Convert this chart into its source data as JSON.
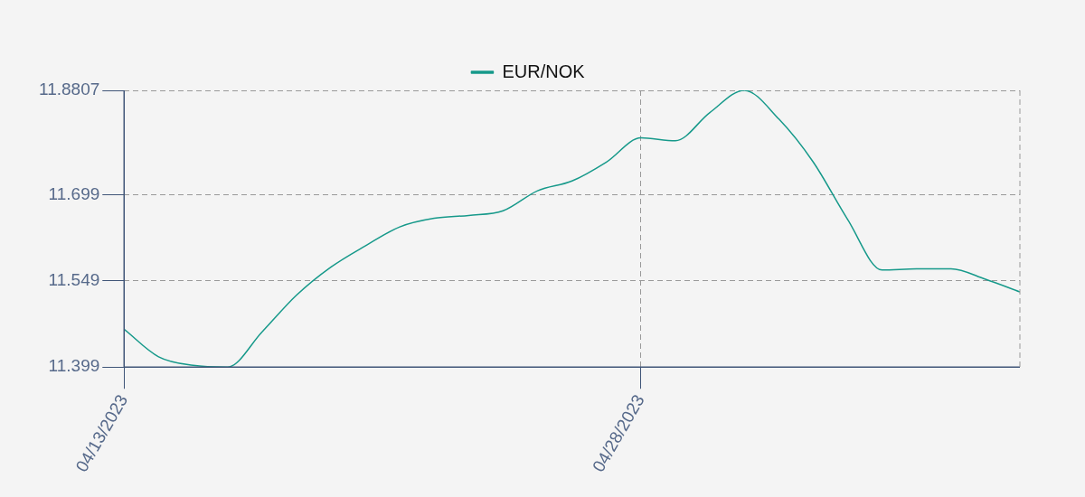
{
  "chart_data": {
    "type": "line",
    "legend": "top",
    "grid": true,
    "marker": "none",
    "line_style": "solid",
    "xlim": [
      "2023-04-13",
      "2023-05-09"
    ],
    "xticks": [
      {
        "value": "2023-04-13",
        "label": "04/13/2023"
      },
      {
        "value": "2023-04-28",
        "label": "04/28/2023"
      }
    ],
    "ylim": [
      11.399,
      11.8807
    ],
    "yticks": [
      11.399,
      11.549,
      11.699,
      11.8807
    ],
    "x": [
      "2023-04-13",
      "2023-04-14",
      "2023-04-15",
      "2023-04-16",
      "2023-04-17",
      "2023-04-18",
      "2023-04-19",
      "2023-04-20",
      "2023-04-21",
      "2023-04-22",
      "2023-04-23",
      "2023-04-24",
      "2023-04-25",
      "2023-04-26",
      "2023-04-27",
      "2023-04-28",
      "2023-04-29",
      "2023-04-30",
      "2023-05-01",
      "2023-05-02",
      "2023-05-03",
      "2023-05-04",
      "2023-05-05",
      "2023-05-06",
      "2023-05-07",
      "2023-05-08",
      "2023-05-09"
    ],
    "series": [
      {
        "name": "EUR/NOK",
        "color": "#16998a",
        "values": [
          11.465,
          11.417,
          11.402,
          11.399,
          11.46,
          11.524,
          11.573,
          11.61,
          11.643,
          11.658,
          11.663,
          11.671,
          11.706,
          11.723,
          11.756,
          11.798,
          11.793,
          11.842,
          11.8807,
          11.831,
          11.756,
          11.656,
          11.568,
          11.57,
          11.57,
          11.552,
          11.53
        ]
      }
    ]
  }
}
